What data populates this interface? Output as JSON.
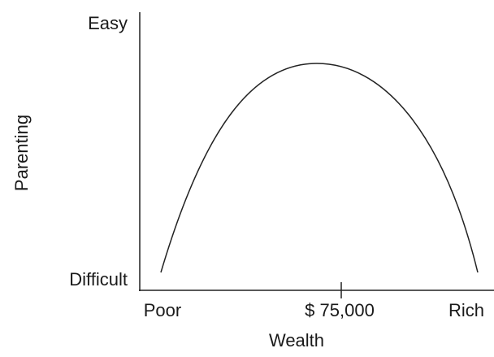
{
  "axes": {
    "y_label": "Parenting",
    "y_top": "Easy",
    "y_bottom": "Difficult",
    "x_label": "Wealth",
    "x_left": "Poor",
    "x_middle": "$ 75,000",
    "x_right": "Rich"
  }
}
